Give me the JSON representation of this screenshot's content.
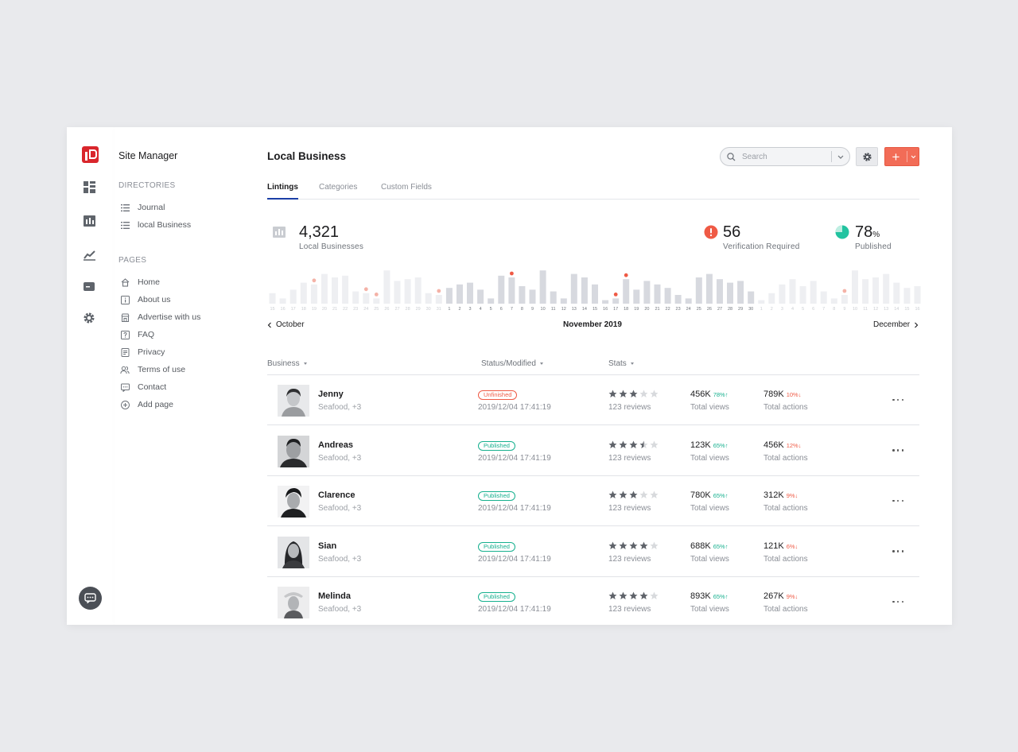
{
  "sidebar": {
    "title": "Site Manager",
    "directories_label": "DIRECTORIES",
    "directories": [
      {
        "label": "Journal",
        "icon": "list-icon"
      },
      {
        "label": "local Business",
        "icon": "list-icon"
      }
    ],
    "pages_label": "PAGES",
    "pages": [
      {
        "label": "Home",
        "icon": "home-icon"
      },
      {
        "label": "About us",
        "icon": "info-icon"
      },
      {
        "label": "Advertise with us",
        "icon": "store-icon"
      },
      {
        "label": "FAQ",
        "icon": "help-icon"
      },
      {
        "label": "Privacy",
        "icon": "document-icon"
      },
      {
        "label": "Terms of use",
        "icon": "users-icon"
      },
      {
        "label": "Contact",
        "icon": "chat-icon"
      },
      {
        "label": "Add page",
        "icon": "add-circle-icon"
      }
    ]
  },
  "header": {
    "title": "Local Business",
    "search_placeholder": "Search"
  },
  "tabs": [
    "Lintings",
    "Categories",
    "Custom Fields"
  ],
  "stats": {
    "businesses": {
      "value": "4,321",
      "label": "Local Businesses"
    },
    "verification": {
      "value": "56",
      "label": "Verification Required"
    },
    "published": {
      "value": "78",
      "unit": "%",
      "label": "Published"
    }
  },
  "chart_data": {
    "type": "bar",
    "categories": [
      "15",
      "16",
      "17",
      "18",
      "19",
      "20",
      "21",
      "22",
      "23",
      "24",
      "25",
      "26",
      "27",
      "28",
      "29",
      "30",
      "31",
      "1",
      "2",
      "3",
      "4",
      "5",
      "6",
      "7",
      "8",
      "9",
      "10",
      "11",
      "12",
      "13",
      "14",
      "15",
      "16",
      "17",
      "18",
      "19",
      "20",
      "21",
      "22",
      "23",
      "24",
      "25",
      "26",
      "27",
      "28",
      "29",
      "30",
      "1",
      "2",
      "3",
      "4",
      "5",
      "6",
      "7",
      "8",
      "9",
      "10",
      "11",
      "12",
      "13",
      "14",
      "15",
      "16"
    ],
    "values": [
      6,
      3,
      8,
      12,
      11,
      17,
      15,
      16,
      7,
      6,
      3,
      19,
      13,
      14,
      15,
      6,
      5,
      9,
      11,
      12,
      8,
      3,
      16,
      15,
      10,
      8,
      19,
      7,
      3,
      17,
      15,
      11,
      2,
      3,
      14,
      8,
      13,
      11,
      9,
      5,
      3,
      15,
      17,
      14,
      12,
      13,
      7,
      2,
      6,
      11,
      14,
      10,
      13,
      7,
      3,
      5,
      19,
      14,
      15,
      17,
      12,
      9,
      10
    ],
    "current_month_range": [
      17,
      46
    ],
    "markers": [
      {
        "index": 4,
        "kind": "soft"
      },
      {
        "index": 9,
        "kind": "soft"
      },
      {
        "index": 10,
        "kind": "soft"
      },
      {
        "index": 16,
        "kind": "soft"
      },
      {
        "index": 23,
        "kind": "strong"
      },
      {
        "index": 33,
        "kind": "strong"
      },
      {
        "index": 34,
        "kind": "strong"
      },
      {
        "index": 55,
        "kind": "soft"
      }
    ],
    "colors": {
      "current": "#d7d9df",
      "other": "#eeeff2",
      "marker_soft": "#f4b2a7",
      "marker_strong": "#ef5a45"
    }
  },
  "month_nav": {
    "prev": "October",
    "current": "November 2019",
    "next": "December"
  },
  "table": {
    "columns": [
      "Business",
      "Status/Modified",
      "Stats"
    ],
    "rows": [
      {
        "name": "Jenny",
        "sub": "Seafood, +3",
        "status": "Unfinished",
        "status_kind": "unf",
        "date": "2019/12/04 17:41:19",
        "rating": 3,
        "reviews": "123 reviews",
        "views": "456K",
        "views_pct": "78%",
        "views_dir": "up",
        "views_label": "Total views",
        "actions": "789K",
        "actions_pct": "10%",
        "actions_dir": "down",
        "actions_label": "Total actions"
      },
      {
        "name": "Andreas",
        "sub": "Seafood, +3",
        "status": "Published",
        "status_kind": "pub",
        "date": "2019/12/04 17:41:19",
        "rating": 3.5,
        "reviews": "123 reviews",
        "views": "123K",
        "views_pct": "65%",
        "views_dir": "up",
        "views_label": "Total views",
        "actions": "456K",
        "actions_pct": "12%",
        "actions_dir": "down",
        "actions_label": "Total actions"
      },
      {
        "name": "Clarence",
        "sub": "Seafood, +3",
        "status": "Published",
        "status_kind": "pub",
        "date": "2019/12/04 17:41:19",
        "rating": 3,
        "reviews": "123 reviews",
        "views": "780K",
        "views_pct": "65%",
        "views_dir": "up",
        "views_label": "Total views",
        "actions": "312K",
        "actions_pct": "9%",
        "actions_dir": "down",
        "actions_label": "Total actions"
      },
      {
        "name": "Sian",
        "sub": "Seafood, +3",
        "status": "Published",
        "status_kind": "pub",
        "date": "2019/12/04 17:41:19",
        "rating": 4,
        "reviews": "123 reviews",
        "views": "688K",
        "views_pct": "65%",
        "views_dir": "up",
        "views_label": "Total views",
        "actions": "121K",
        "actions_pct": "6%",
        "actions_dir": "down",
        "actions_label": "Total actions"
      },
      {
        "name": "Melinda",
        "sub": "Seafood, +3",
        "status": "Published",
        "status_kind": "pub",
        "date": "2019/12/04 17:41:19",
        "rating": 4,
        "reviews": "123 reviews",
        "views": "893K",
        "views_pct": "65%",
        "views_dir": "up",
        "views_label": "Total views",
        "actions": "267K",
        "actions_pct": "9%",
        "actions_dir": "down",
        "actions_label": "Total actions"
      }
    ]
  }
}
